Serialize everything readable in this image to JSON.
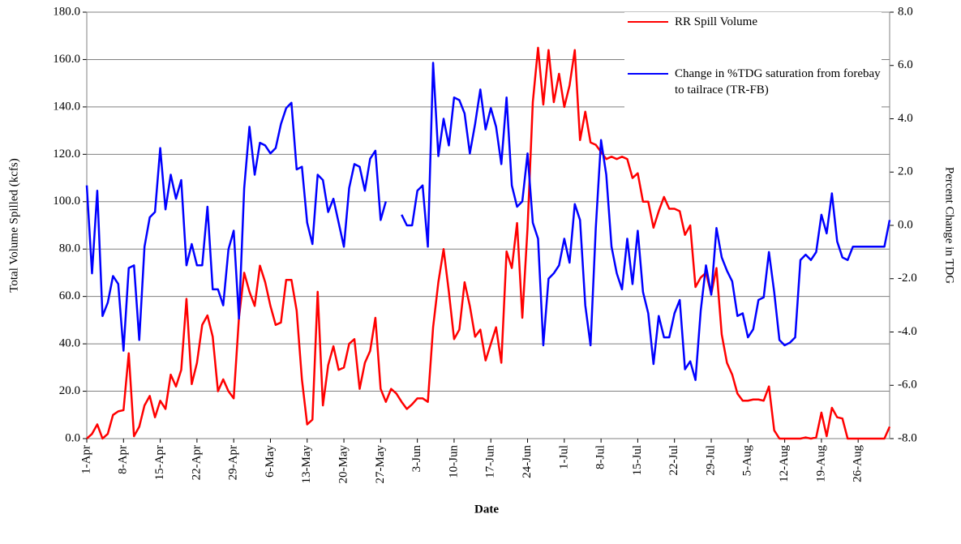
{
  "chart_data": {
    "type": "line",
    "x_label": "Date",
    "y_label": "Total Volume Spilled (kcfs)",
    "y2_label": "Percent Change in TDG",
    "categories": [
      "1-Apr",
      null,
      null,
      null,
      null,
      null,
      null,
      "8-Apr",
      null,
      null,
      null,
      null,
      null,
      null,
      "15-Apr",
      null,
      null,
      null,
      null,
      null,
      null,
      "22-Apr",
      null,
      null,
      null,
      null,
      null,
      null,
      "29-Apr",
      null,
      null,
      null,
      null,
      null,
      null,
      "6-May",
      null,
      null,
      null,
      null,
      null,
      null,
      "13-May",
      null,
      null,
      null,
      null,
      null,
      null,
      "20-May",
      null,
      null,
      null,
      null,
      null,
      null,
      "27-May",
      null,
      null,
      null,
      null,
      null,
      null,
      "3-Jun",
      null,
      null,
      null,
      null,
      null,
      null,
      "10-Jun",
      null,
      null,
      null,
      null,
      null,
      null,
      "17-Jun",
      null,
      null,
      null,
      null,
      null,
      null,
      "24-Jun",
      null,
      null,
      null,
      null,
      null,
      null,
      "1-Jul",
      null,
      null,
      null,
      null,
      null,
      null,
      "8-Jul",
      null,
      null,
      null,
      null,
      null,
      null,
      "15-Jul",
      null,
      null,
      null,
      null,
      null,
      null,
      "22-Jul",
      null,
      null,
      null,
      null,
      null,
      null,
      "29-Jul",
      null,
      null,
      null,
      null,
      null,
      null,
      "5-Aug",
      null,
      null,
      null,
      null,
      null,
      null,
      "12-Aug",
      null,
      null,
      null,
      null,
      null,
      null,
      "19-Aug",
      null,
      null,
      null,
      null,
      null,
      null,
      "26-Aug",
      null,
      null,
      null,
      null,
      null,
      null
    ],
    "series": [
      {
        "name": "RR Spill Volume",
        "color": "#ff0000",
        "axis": "y",
        "values": [
          0,
          2,
          6,
          0,
          2,
          10,
          11.5,
          12,
          36,
          1,
          5,
          14,
          18,
          9,
          16,
          12.5,
          27,
          22,
          29,
          59,
          23,
          32,
          48,
          52,
          43,
          20,
          25,
          20,
          17,
          51,
          70,
          62,
          56,
          73,
          66,
          56,
          48,
          49,
          67,
          67,
          54,
          25,
          6,
          8,
          62,
          14,
          31,
          39,
          29,
          30,
          40,
          42,
          21,
          32,
          37,
          51,
          21,
          15.5,
          21,
          19,
          15.5,
          12.5,
          14.5,
          17,
          17,
          15.5,
          47,
          66,
          80,
          62,
          42,
          46,
          66,
          56,
          43,
          46,
          33,
          40,
          47,
          32,
          79,
          72,
          91,
          51,
          89,
          142,
          165,
          141,
          164,
          142,
          154,
          140,
          149,
          164,
          126,
          138,
          125,
          124,
          121,
          118,
          119,
          118,
          119,
          118,
          110,
          112,
          100,
          100,
          89,
          96,
          102,
          97,
          97,
          96,
          86,
          90,
          64,
          68,
          70,
          61,
          72,
          44,
          32,
          27,
          19,
          16,
          16,
          16.5,
          16.5,
          16,
          22,
          3.5,
          0,
          0,
          0,
          0,
          0,
          0.5,
          0,
          0.5,
          11,
          1,
          13,
          9,
          8.5,
          0,
          0,
          0,
          0,
          0,
          0,
          0,
          0,
          5
        ]
      },
      {
        "name": "Change in %TDG saturation from forebay to tailrace (TR-FB)",
        "color": "#0000ff",
        "axis": "y2",
        "values": [
          1.5,
          -1.8,
          1.3,
          -3.4,
          -2.9,
          -1.9,
          -2.2,
          -4.7,
          -1.6,
          -1.5,
          -4.3,
          -0.8,
          0.3,
          0.5,
          2.9,
          0.6,
          1.9,
          1.0,
          1.7,
          -1.5,
          -0.7,
          -1.5,
          -1.5,
          0.7,
          -2.4,
          -2.4,
          -3.0,
          -0.9,
          -0.2,
          -3.5,
          1.4,
          3.7,
          1.9,
          3.1,
          3.0,
          2.7,
          2.9,
          3.8,
          4.4,
          4.6,
          2.1,
          2.2,
          0.1,
          -0.7,
          1.9,
          1.7,
          0.5,
          1.0,
          0.1,
          -0.8,
          1.4,
          2.3,
          2.2,
          1.3,
          2.5,
          2.8,
          0.2,
          0.9,
          null,
          null,
          0.4,
          0,
          0,
          1.3,
          1.5,
          -0.8,
          6.1,
          2.6,
          4.0,
          3.0,
          4.8,
          4.7,
          4.2,
          2.7,
          3.8,
          5.1,
          3.6,
          4.4,
          3.7,
          2.3,
          4.8,
          1.5,
          0.7,
          0.9,
          2.7,
          0.1,
          -0.5,
          -4.5,
          -2.0,
          -1.8,
          -1.5,
          -0.5,
          -1.4,
          0.8,
          0.2,
          -3.0,
          -4.5,
          -0.1,
          3.2,
          1.9,
          -0.8,
          -1.8,
          -2.4,
          -0.5,
          -2.2,
          -0.2,
          -2.5,
          -3.3,
          -5.2,
          -3.4,
          -4.2,
          -4.2,
          -3.3,
          -2.8,
          -5.4,
          -5.1,
          -5.8,
          -3.2,
          -1.5,
          -2.6,
          -0.1,
          -1.2,
          -1.7,
          -2.1,
          -3.4,
          -3.3,
          -4.2,
          -3.9,
          -2.8,
          -2.7,
          -1.0,
          -2.5,
          -4.3,
          -4.5,
          -4.4,
          -4.2,
          -1.3,
          -1.1,
          -1.3,
          -1.0,
          0.4,
          -0.3,
          1.2,
          -0.6,
          -1.2,
          -1.3,
          -0.8,
          -0.8,
          -0.8,
          -0.8,
          -0.8,
          -0.8,
          -0.8,
          0.2
        ]
      }
    ],
    "ylim": [
      0,
      180
    ],
    "yticks": [
      {
        "value": 0,
        "label": "0.0"
      },
      {
        "value": 20,
        "label": "20.0"
      },
      {
        "value": 40,
        "label": "40.0"
      },
      {
        "value": 60,
        "label": "60.0"
      },
      {
        "value": 80,
        "label": "80.0"
      },
      {
        "value": 100,
        "label": "100.0"
      },
      {
        "value": 120,
        "label": "120.0"
      },
      {
        "value": 140,
        "label": "140.0"
      },
      {
        "value": 160,
        "label": "160.0"
      },
      {
        "value": 180,
        "label": "180.0"
      }
    ],
    "y2lim": [
      -8,
      8
    ],
    "y2ticks": [
      {
        "value": -8,
        "label": "-8.0"
      },
      {
        "value": -6,
        "label": "-6.0"
      },
      {
        "value": -4,
        "label": "-4.0"
      },
      {
        "value": -2,
        "label": "-2.0"
      },
      {
        "value": 0,
        "label": "0.0"
      },
      {
        "value": 2,
        "label": "2.0"
      },
      {
        "value": 4,
        "label": "4.0"
      },
      {
        "value": 6,
        "label": "6.0"
      },
      {
        "value": 8,
        "label": "8.0"
      }
    ],
    "grid": true,
    "legend": "top-right"
  }
}
